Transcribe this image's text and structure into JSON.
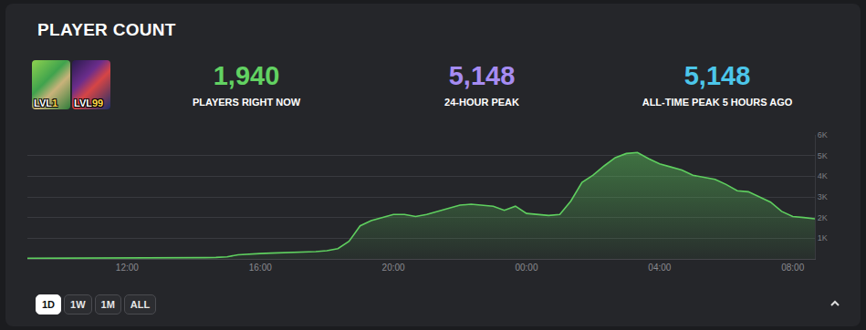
{
  "header": {
    "title": "PLAYER COUNT"
  },
  "thumbnails": [
    {
      "label": "LVL",
      "level": "1"
    },
    {
      "label": "LVL",
      "level": "99"
    }
  ],
  "stats": [
    {
      "value": "1,940",
      "label": "PLAYERS RIGHT NOW"
    },
    {
      "value": "5,148",
      "label": "24-HOUR PEAK"
    },
    {
      "value": "5,148",
      "label": "ALL-TIME PEAK 5 HOURS AGO"
    }
  ],
  "buttons": [
    "1D",
    "1W",
    "1M",
    "ALL"
  ],
  "active_button": "1D",
  "chart_data": {
    "type": "line",
    "categories": [
      null,
      null,
      null,
      null,
      null,
      null,
      null,
      null,
      null,
      "12:00",
      null,
      null,
      null,
      null,
      null,
      null,
      null,
      null,
      null,
      null,
      null,
      "16:00",
      null,
      null,
      null,
      null,
      null,
      null,
      null,
      null,
      null,
      null,
      null,
      "20:00",
      null,
      null,
      null,
      null,
      null,
      null,
      null,
      null,
      null,
      null,
      null,
      "00:00",
      null,
      null,
      null,
      null,
      null,
      null,
      null,
      null,
      null,
      null,
      null,
      "04:00",
      null,
      null,
      null,
      null,
      null,
      null,
      null,
      null,
      null,
      null,
      null,
      "08:00",
      null,
      null
    ],
    "values": [
      30,
      30,
      30,
      30,
      30,
      30,
      30,
      30,
      30,
      30,
      30,
      30,
      30,
      30,
      40,
      50,
      60,
      70,
      100,
      200,
      240,
      260,
      280,
      290,
      300,
      310,
      350,
      400,
      500,
      850,
      1600,
      1850,
      2000,
      2150,
      2150,
      2050,
      2150,
      2300,
      2450,
      2600,
      2650,
      2600,
      2550,
      2350,
      2550,
      2200,
      2150,
      2100,
      2150,
      2800,
      3700,
      4050,
      4500,
      4900,
      5100,
      5148,
      4850,
      4600,
      4450,
      4300,
      4050,
      3950,
      3850,
      3600,
      3300,
      3250,
      3000,
      2750,
      2300,
      2050,
      2000,
      1940
    ],
    "color": "#5fcf5f",
    "ylim": [
      0,
      6000
    ],
    "yticks": [
      {
        "value": 1000,
        "label": "1K"
      },
      {
        "value": 2000,
        "label": "2K"
      },
      {
        "value": 3000,
        "label": "3K"
      },
      {
        "value": 4000,
        "label": "4K"
      },
      {
        "value": 5000,
        "label": "5K"
      },
      {
        "value": 6000,
        "label": "6K"
      }
    ],
    "grid": true
  }
}
